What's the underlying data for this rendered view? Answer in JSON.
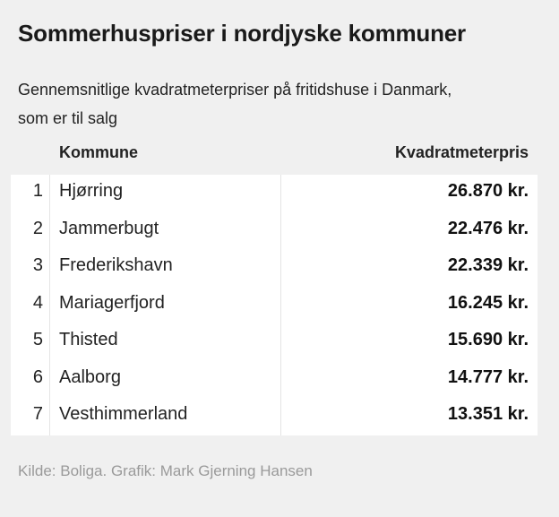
{
  "title": "Sommerhuspriser i nordjyske kommuner",
  "subtitle_lines": [
    "Gennemsnitlige kvadratmeterpriser på fritidshuse i Danmark,",
    "som er til salg"
  ],
  "source": "Kilde: Boliga. Grafik: Mark Gjerning Hansen",
  "chart_data": {
    "type": "table",
    "title": "Sommerhuspriser i nordjyske kommuner",
    "subtitle": "Gennemsnitlige kvadratmeterpriser på fritidshuse i Danmark, som er til salg",
    "columns": [
      "",
      "Kommune",
      "Kvadratmeterpris"
    ],
    "rows": [
      {
        "rank": "1",
        "kommune": "Hjørring",
        "pris": "26.870 kr.",
        "value": 26870
      },
      {
        "rank": "2",
        "kommune": "Jammerbugt",
        "pris": "22.476 kr.",
        "value": 22476
      },
      {
        "rank": "3",
        "kommune": "Frederikshavn",
        "pris": "22.339 kr.",
        "value": 22339
      },
      {
        "rank": "4",
        "kommune": "Mariagerfjord",
        "pris": "16.245 kr.",
        "value": 16245
      },
      {
        "rank": "5",
        "kommune": "Thisted",
        "pris": "15.690 kr.",
        "value": 15690
      },
      {
        "rank": "6",
        "kommune": "Aalborg",
        "pris": "14.777 kr.",
        "value": 14777
      },
      {
        "rank": "7",
        "kommune": "Vesthimmerland",
        "pris": "13.351 kr.",
        "value": 13351
      }
    ],
    "source": "Kilde: Boliga. Grafik: Mark Gjerning Hansen"
  }
}
